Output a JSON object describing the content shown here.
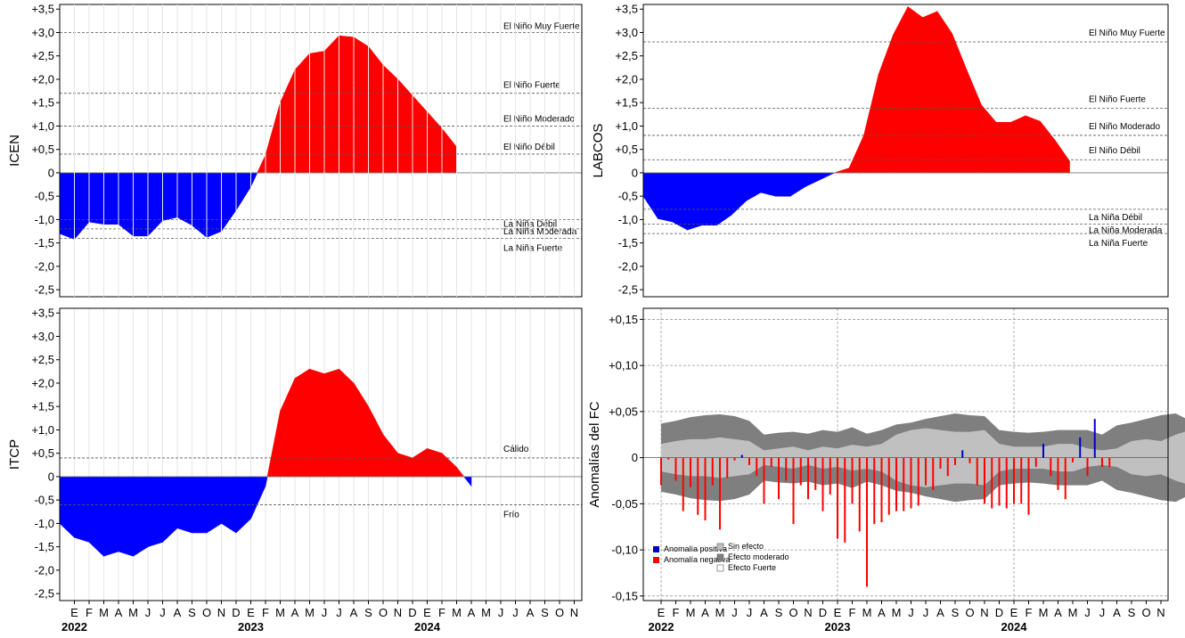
{
  "chart_data": [
    {
      "id": "icen",
      "type": "area",
      "ylabel": "ICEN",
      "ylim": [
        -2.65,
        3.6
      ],
      "yticks": [
        3.5,
        3.0,
        2.5,
        2.0,
        1.5,
        1.0,
        0.5,
        0,
        -0.5,
        -1.0,
        -1.5,
        -2.0,
        -2.5
      ],
      "ytick_labels": [
        "+3,5",
        "+3,0",
        "+2,5",
        "+2,0",
        "+1,5",
        "+1,0",
        "+0,5",
        "0",
        "-0,5",
        "-1,0",
        "-1,5",
        "-2,0",
        "-2,5"
      ],
      "colors": {
        "positive": "#ff0000",
        "negative": "#0000ff"
      },
      "values": [
        -1.3,
        -1.42,
        -1.05,
        -1.1,
        -1.1,
        -1.35,
        -1.35,
        -1.02,
        -0.95,
        -1.12,
        -1.38,
        -1.25,
        -0.8,
        -0.3,
        0.38,
        1.5,
        2.2,
        2.55,
        2.6,
        2.93,
        2.9,
        2.7,
        2.3,
        2.0,
        1.65,
        1.3,
        0.95,
        0.55
      ],
      "thresholds": [
        {
          "y": 3.0,
          "label": "El Niño Muy Fuerte"
        },
        {
          "y": 1.7,
          "label": "El Niño Fuerte"
        },
        {
          "y": 1.0,
          "label": "El Niño Moderado"
        },
        {
          "y": 0.4,
          "label": "El Niño Débil"
        },
        {
          "y": -1.0,
          "label": "La Niña Débil"
        },
        {
          "y": -1.2,
          "label": "La Niña Moderada"
        },
        {
          "y": -1.4,
          "label": "La Niña Fuerte"
        }
      ]
    },
    {
      "id": "labcos",
      "type": "area",
      "ylabel": "LABCOS",
      "ylim": [
        -2.65,
        3.6
      ],
      "yticks": [
        3.5,
        3.0,
        2.5,
        2.0,
        1.5,
        1.0,
        0.5,
        0,
        -0.5,
        -1.0,
        -1.5,
        -2.0,
        -2.5
      ],
      "ytick_labels": [
        "+3,5",
        "+3,0",
        "+2,5",
        "+2,0",
        "+1,5",
        "+1,0",
        "+0,5",
        "0",
        "-0,5",
        "-1,0",
        "-1,5",
        "-2,0",
        "-2,5"
      ],
      "colors": {
        "positive": "#ff0000",
        "negative": "#0000ff"
      },
      "values": [
        -0.5,
        -0.98,
        -1.05,
        -1.22,
        -1.12,
        -1.12,
        -0.9,
        -0.6,
        -0.42,
        -0.5,
        -0.5,
        -0.3,
        -0.15,
        0.0,
        0.1,
        0.8,
        2.1,
        2.95,
        3.55,
        3.32,
        3.45,
        2.98,
        2.2,
        1.45,
        1.08,
        1.08,
        1.22,
        1.1,
        0.7,
        0.25
      ],
      "thresholds": [
        {
          "y": 2.8,
          "label": "El Niño Muy Fuerte"
        },
        {
          "y": 1.38,
          "label": "El Niño Fuerte"
        },
        {
          "y": 0.8,
          "label": "El Niño Moderado"
        },
        {
          "y": 0.28,
          "label": "El Niño Débil"
        },
        {
          "y": -0.78,
          "label": "La Niña Débil"
        },
        {
          "y": -1.1,
          "label": "La Niña Moderada"
        },
        {
          "y": -1.3,
          "label": "La Niña Fuerte"
        }
      ]
    },
    {
      "id": "itcp",
      "type": "area",
      "ylabel": "ITCP",
      "ylim": [
        -2.65,
        3.6
      ],
      "yticks": [
        3.5,
        3.0,
        2.5,
        2.0,
        1.5,
        1.0,
        0.5,
        0,
        -0.5,
        -1.0,
        -1.5,
        -2.0,
        -2.5
      ],
      "ytick_labels": [
        "+3,5",
        "+3,0",
        "+2,5",
        "+2,0",
        "+1,5",
        "+1,0",
        "+0,5",
        "0",
        "-0,5",
        "-1,0",
        "-1,5",
        "-2,0",
        "-2,5"
      ],
      "colors": {
        "positive": "#ff0000",
        "negative": "#0000ff"
      },
      "values": [
        -1.0,
        -1.3,
        -1.4,
        -1.7,
        -1.6,
        -1.7,
        -1.5,
        -1.4,
        -1.1,
        -1.2,
        -1.2,
        -1.0,
        -1.2,
        -0.9,
        -0.2,
        1.4,
        2.1,
        2.3,
        2.2,
        2.3,
        2.0,
        1.5,
        0.9,
        0.5,
        0.4,
        0.6,
        0.5,
        0.2,
        -0.2
      ],
      "thresholds": [
        {
          "y": 0.4,
          "label": "Cálido"
        },
        {
          "y": -0.6,
          "label": "Frío"
        }
      ]
    },
    {
      "id": "fc",
      "type": "bar",
      "ylabel": "Anomalías del FC",
      "ylim": [
        -0.155,
        0.162
      ],
      "yticks": [
        0.15,
        0.1,
        0.05,
        0,
        -0.05,
        -0.1,
        -0.15
      ],
      "ytick_labels": [
        "+0,15",
        "+0,10",
        "+0,05",
        "0",
        "-0,05",
        "-0,10",
        "-0,15"
      ],
      "colors": {
        "positive": "#0000c8",
        "negative": "#ff0000",
        "band_light": "#c0c0c0",
        "band_mid": "#7f7f7f",
        "band_strong": "#ffffff"
      },
      "bars_t": [
        0.0,
        0.5,
        1.0,
        1.5,
        2.0,
        2.5,
        3.0,
        3.5,
        4.0,
        4.5,
        5.0,
        5.5,
        6.0,
        6.5,
        7.0,
        7.5,
        8.0,
        8.5,
        9.0,
        9.5,
        10.0,
        10.5,
        11.0,
        11.5,
        12.0,
        12.5,
        13.0,
        13.5,
        14.0,
        14.5,
        15.0,
        15.5,
        16.0,
        16.5,
        17.0,
        17.5,
        18.0,
        18.5,
        19.0,
        19.5,
        20.0,
        20.5,
        21.0,
        21.5,
        22.0,
        22.5,
        23.0,
        23.5,
        24.0,
        24.5,
        25.0,
        25.5,
        26.0,
        26.5,
        27.0,
        27.5,
        28.0,
        28.5,
        29.0,
        29.5,
        30.0,
        30.5,
        31.0
      ],
      "bars_v": [
        -0.03,
        -0.002,
        -0.025,
        -0.058,
        -0.032,
        -0.062,
        -0.068,
        -0.03,
        -0.078,
        -0.022,
        -0.003,
        0.003,
        -0.008,
        -0.02,
        -0.05,
        -0.01,
        -0.045,
        -0.025,
        -0.072,
        -0.03,
        -0.045,
        -0.035,
        -0.058,
        -0.04,
        -0.088,
        -0.092,
        -0.05,
        -0.08,
        -0.14,
        -0.072,
        -0.07,
        -0.062,
        -0.058,
        -0.058,
        -0.055,
        -0.052,
        -0.03,
        -0.035,
        -0.012,
        -0.02,
        -0.008,
        0.008,
        -0.006,
        -0.03,
        -0.05,
        -0.055,
        -0.052,
        -0.055,
        -0.05,
        -0.05,
        -0.062,
        -0.01,
        0.015,
        -0.02,
        -0.035,
        -0.045,
        -0.005,
        0.022,
        -0.02,
        0.042,
        -0.01,
        -0.01,
        0.0
      ],
      "band_t": [
        0,
        1,
        2,
        3,
        4,
        5,
        6,
        7,
        8,
        9,
        10,
        11,
        12,
        13,
        14,
        15,
        16,
        17,
        18,
        19,
        20,
        21,
        22,
        23,
        24,
        25,
        26,
        27,
        28,
        29,
        30,
        31,
        32,
        33,
        34,
        35,
        36,
        37,
        38,
        39
      ],
      "band_mid_hi": [
        0.037,
        0.04,
        0.044,
        0.046,
        0.047,
        0.045,
        0.04,
        0.025,
        0.027,
        0.028,
        0.026,
        0.03,
        0.028,
        0.033,
        0.026,
        0.03,
        0.036,
        0.038,
        0.042,
        0.045,
        0.048,
        0.046,
        0.045,
        0.03,
        0.028,
        0.027,
        0.028,
        0.03,
        0.03,
        0.03,
        0.025,
        0.035,
        0.038,
        0.042,
        0.046,
        0.048,
        0.04,
        0.035,
        0.035,
        0.035
      ],
      "band_light_hi": [
        0.015,
        0.018,
        0.02,
        0.02,
        0.022,
        0.02,
        0.018,
        0.008,
        0.01,
        0.012,
        0.008,
        0.012,
        0.01,
        0.014,
        0.012,
        0.015,
        0.025,
        0.03,
        0.032,
        0.03,
        0.028,
        0.028,
        0.03,
        0.015,
        0.012,
        0.012,
        0.012,
        0.015,
        0.015,
        0.01,
        0.008,
        0.01,
        0.018,
        0.02,
        0.018,
        0.025,
        0.03,
        0.022,
        0.022,
        0.022
      ],
      "legend": [
        {
          "label": "Anomalía positiva",
          "kind": "positive"
        },
        {
          "label": "Anomalía negativa",
          "kind": "negative"
        },
        {
          "label": "Sin efecto",
          "kind": "band_light"
        },
        {
          "label": "Efecto moderado",
          "kind": "band_mid"
        },
        {
          "label": "Efecto Fuerte",
          "kind": "band_strong"
        }
      ]
    }
  ],
  "x_axis": {
    "months": [
      "E",
      "F",
      "M",
      "A",
      "M",
      "J",
      "J",
      "A",
      "S",
      "O",
      "N",
      "D",
      "E",
      "F",
      "M",
      "A",
      "M",
      "J",
      "J",
      "A",
      "S",
      "O",
      "N",
      "D",
      "E",
      "F",
      "M",
      "A",
      "M",
      "J",
      "J",
      "A",
      "S",
      "O",
      "N"
    ],
    "years": [
      {
        "label": "2022",
        "index": 0
      },
      {
        "label": "2023",
        "index": 12
      },
      {
        "label": "2024",
        "index": 24
      }
    ]
  }
}
